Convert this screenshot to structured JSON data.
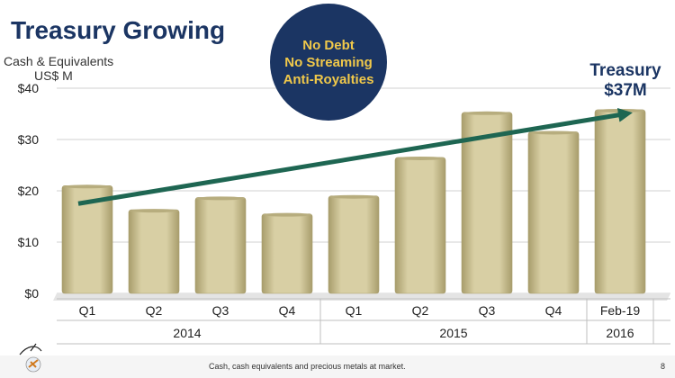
{
  "header": {
    "title": "Treasury Growing",
    "ylabel_line1": "Cash & Equivalents",
    "ylabel_line2": "US$ M"
  },
  "badge": {
    "lines": [
      "No Debt",
      "No Streaming",
      "Anti-Royalties"
    ]
  },
  "callout": {
    "line1": "Treasury",
    "line2": "$37M"
  },
  "footer": {
    "note": "Cash, cash equivalents and precious metals at market.",
    "page": "8"
  },
  "colors": {
    "bar": "#d8cfa4",
    "bar_dark": "#a89d6c",
    "arrow": "#1e6652",
    "navy": "#1b3563",
    "gold": "#f1c94a"
  },
  "chart_data": {
    "type": "bar",
    "categories": [
      "Q1",
      "Q2",
      "Q3",
      "Q4",
      "Q1",
      "Q2",
      "Q3",
      "Q4",
      "Feb-19"
    ],
    "groups": [
      {
        "label": "2014",
        "from": 0,
        "to": 3
      },
      {
        "label": "2015",
        "from": 4,
        "to": 7
      },
      {
        "label": "2016",
        "from": 8,
        "to": 8
      }
    ],
    "values": [
      21,
      16.3,
      18.7,
      15.5,
      19,
      26.5,
      35.3,
      31.5,
      35.8
    ],
    "yticks": [
      "$0",
      "$10",
      "$20",
      "$30",
      "$40"
    ],
    "ytick_values": [
      0,
      10,
      20,
      30,
      40
    ],
    "ylim": [
      0,
      40
    ],
    "grid": true,
    "trend_arrow": {
      "from": [
        0,
        17.5
      ],
      "to": [
        8,
        35
      ]
    }
  }
}
